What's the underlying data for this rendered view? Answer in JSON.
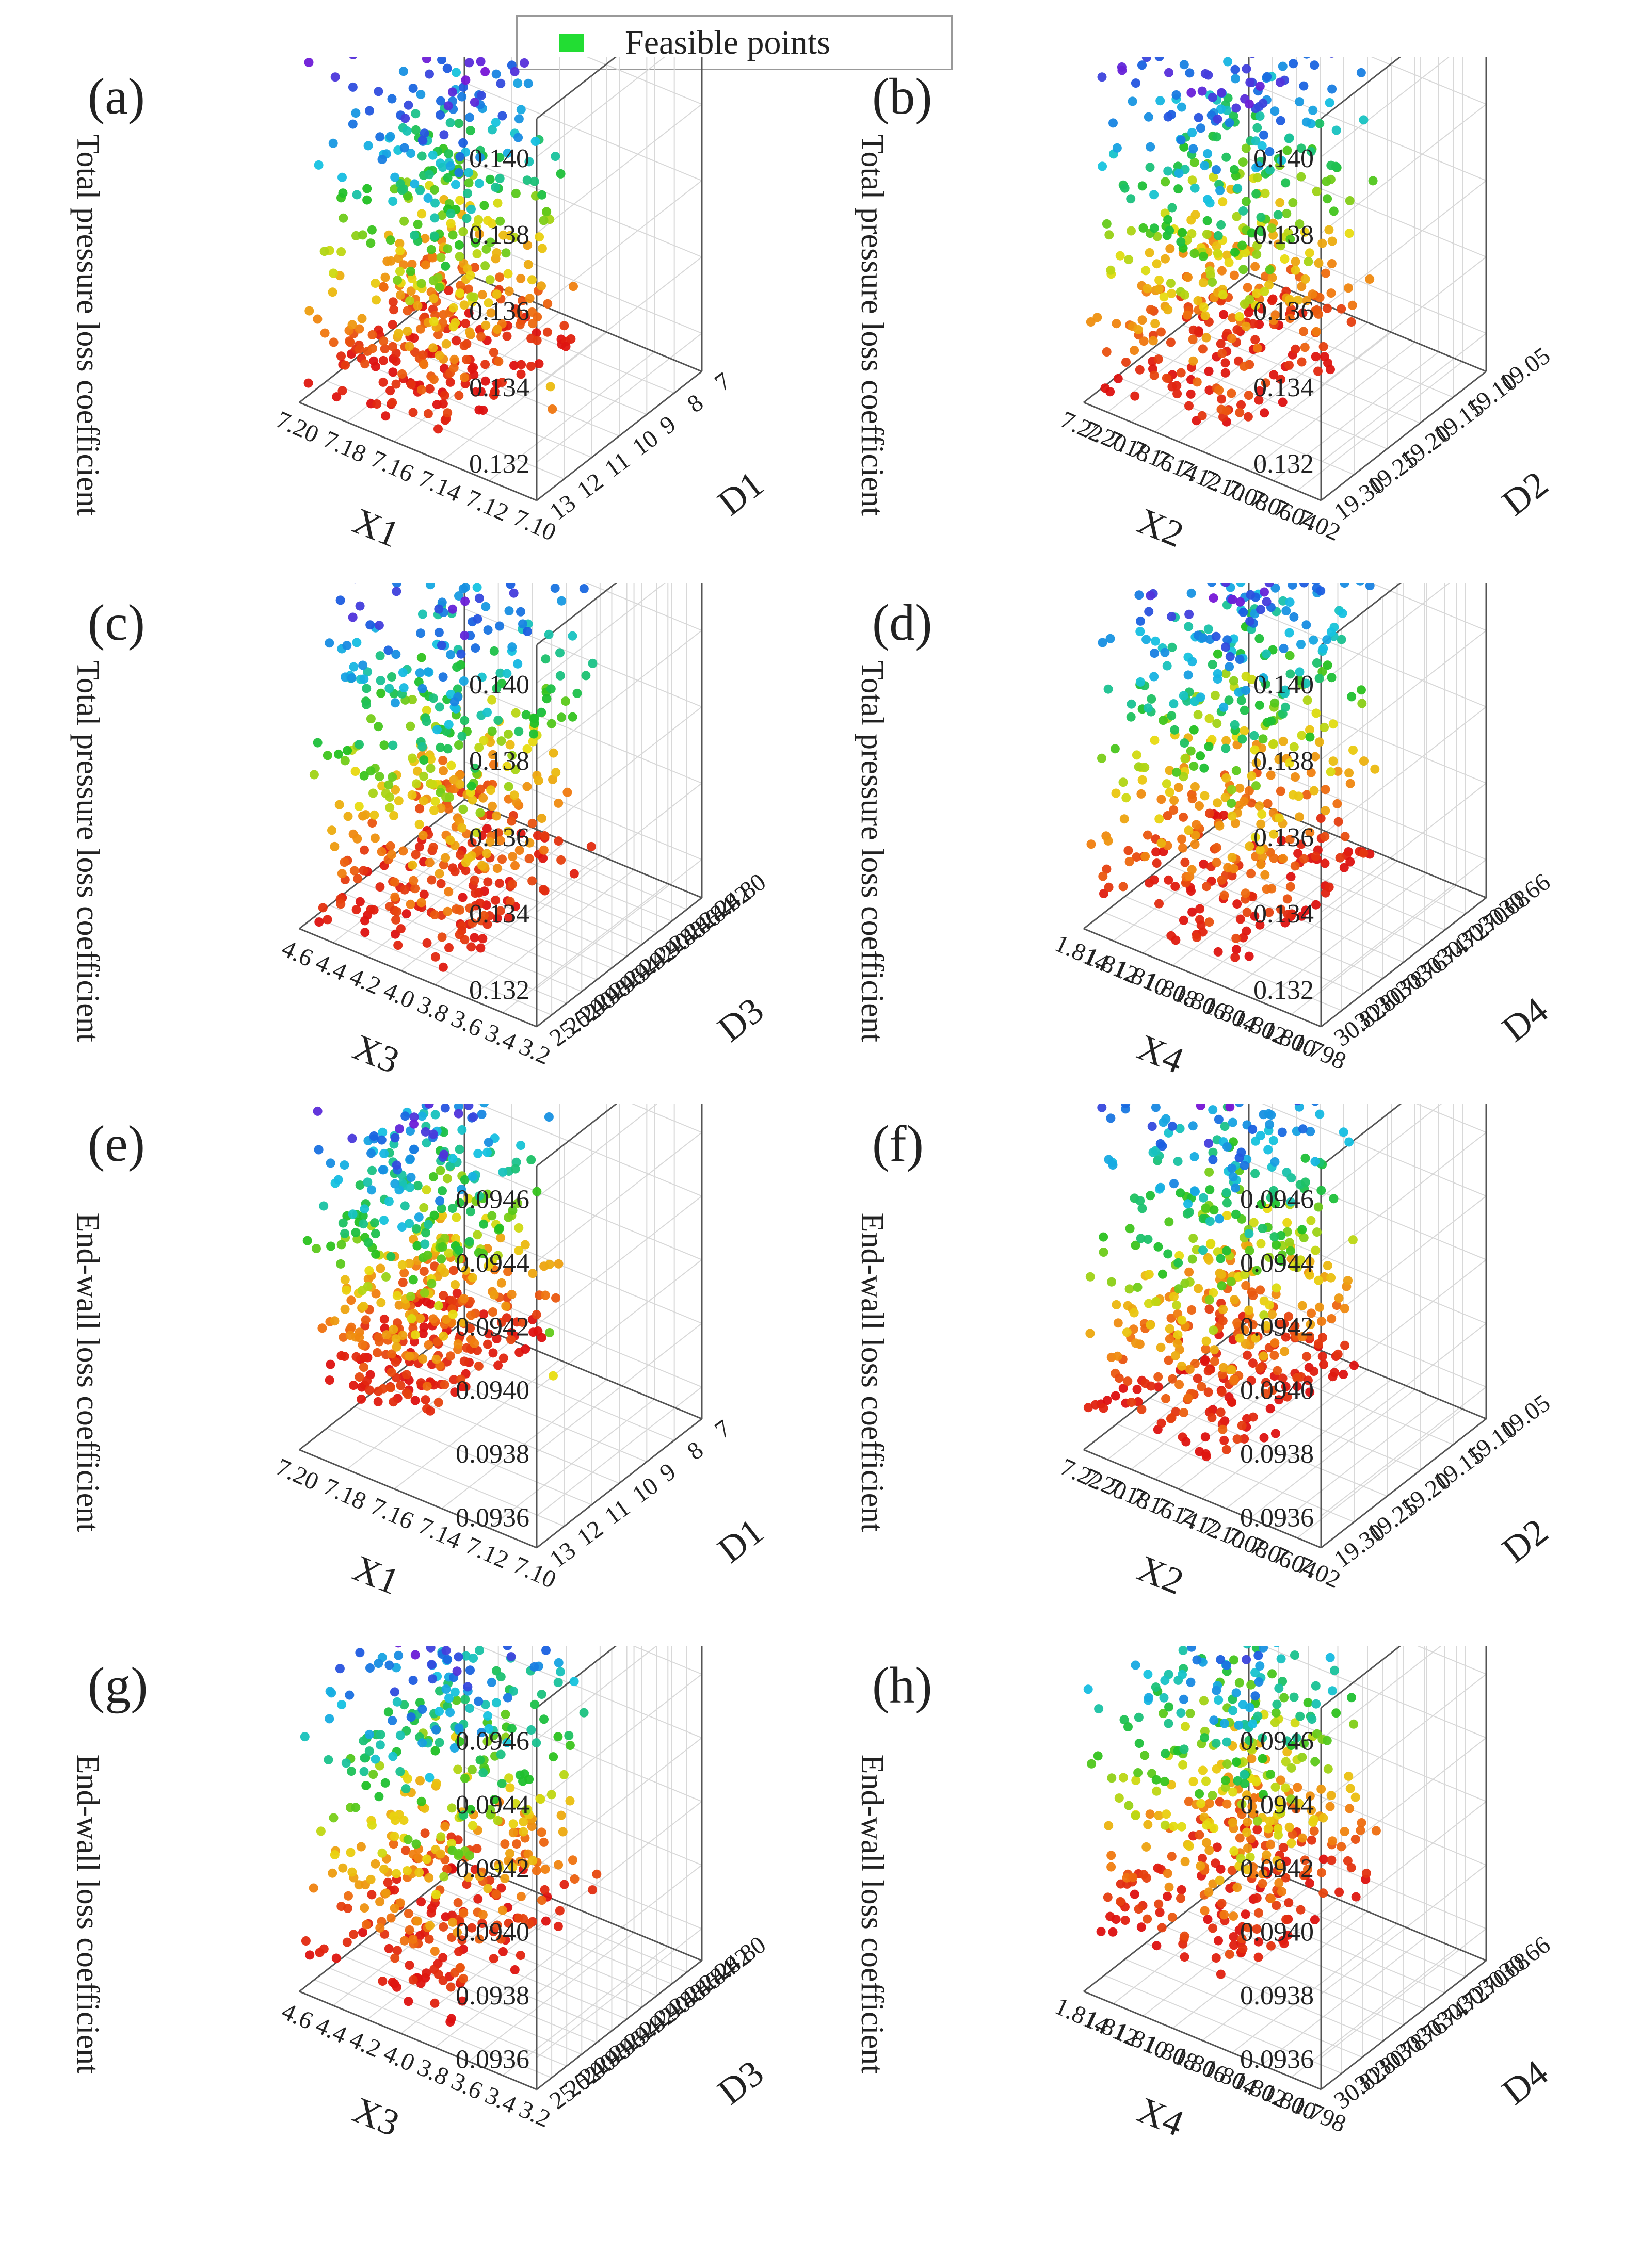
{
  "legend": {
    "label": "Feasible points",
    "color": "#22dd33"
  },
  "colors": {
    "ramp": [
      "#7a12d6",
      "#1a5fe0",
      "#16c3e2",
      "#20c020",
      "#e8dd10",
      "#f07a10",
      "#dd1010"
    ],
    "grid": "#d8d8d8",
    "axis": "#555555"
  },
  "chart_data": [
    {
      "panel": "(a)",
      "type": "scatter3d",
      "title": "",
      "xlabel": "X1",
      "ylabel": "D1",
      "zlabel": "Total pressure loss coefficient",
      "xticks": [
        "7.10",
        "7.12",
        "7.14",
        "7.16",
        "7.18",
        "7.20"
      ],
      "yticks": [
        "7",
        "8",
        "9",
        "10",
        "11",
        "12",
        "13"
      ],
      "zticks": [
        "0.132",
        "0.134",
        "0.136",
        "0.138",
        "0.140"
      ],
      "xlim": [
        7.1,
        7.2
      ],
      "ylim": [
        7,
        13
      ],
      "zlim": [
        0.1315,
        0.1415
      ],
      "points": {
        "n": 520,
        "x": [
          7.12,
          7.2
        ],
        "y": [
          8,
          12.8
        ],
        "z": [
          0.1318,
          0.1405
        ],
        "outliers": [
          [
            7.1,
            12.5,
            0.1342
          ],
          [
            7.105,
            12.0,
            0.1332
          ]
        ]
      }
    },
    {
      "panel": "(b)",
      "type": "scatter3d",
      "title": "",
      "xlabel": "X2",
      "ylabel": "D2",
      "zlabel": "Total pressure loss coefficient",
      "xticks": [
        "7.02",
        "7.04",
        "7.06",
        "7.08",
        "7.10",
        "7.12",
        "7.14",
        "7.16",
        "7.18",
        "7.20",
        "7.22"
      ],
      "yticks": [
        "19.05",
        "19.10",
        "19.15",
        "19.20",
        "19.25",
        "19.30"
      ],
      "zticks": [
        "0.132",
        "0.134",
        "0.136",
        "0.138",
        "0.140"
      ],
      "xlim": [
        7.02,
        7.22
      ],
      "ylim": [
        19.05,
        19.3
      ],
      "zlim": [
        0.1315,
        0.1415
      ],
      "points": {
        "n": 520,
        "x": [
          7.05,
          7.22
        ],
        "y": [
          19.08,
          19.3
        ],
        "z": [
          0.1318,
          0.1408
        ],
        "outliers": []
      }
    },
    {
      "panel": "(c)",
      "type": "scatter3d",
      "title": "",
      "xlabel": "X3",
      "ylabel": "D3",
      "zlabel": "Total pressure loss coefficient",
      "xticks": [
        "3.2",
        "3.4",
        "3.6",
        "3.8",
        "4.0",
        "4.2",
        "4.4",
        "4.6"
      ],
      "yticks": [
        "24.80",
        "24.82",
        "24.84",
        "24.86",
        "24.88",
        "24.90",
        "24.92",
        "24.94",
        "24.96",
        "24.98",
        "25.00",
        "25.02"
      ],
      "zticks": [
        "0.132",
        "0.134",
        "0.136",
        "0.138",
        "0.140"
      ],
      "xlim": [
        3.2,
        4.6
      ],
      "ylim": [
        24.8,
        25.02
      ],
      "zlim": [
        0.1315,
        0.1415
      ],
      "points": {
        "n": 520,
        "x": [
          3.4,
          4.6
        ],
        "y": [
          24.82,
          25.02
        ],
        "z": [
          0.1318,
          0.1408
        ],
        "outliers": []
      }
    },
    {
      "panel": "(d)",
      "type": "scatter3d",
      "title": "",
      "xlabel": "X4",
      "ylabel": "D4",
      "zlabel": "Total pressure loss coefficient",
      "xticks": [
        "1.798",
        "1.800",
        "1.802",
        "1.804",
        "1.806",
        "1.808",
        "1.810",
        "1.812",
        "1.814"
      ],
      "yticks": [
        "30.66",
        "30.68",
        "30.70",
        "30.72",
        "30.74",
        "30.76",
        "30.78",
        "30.80",
        "30.82"
      ],
      "zticks": [
        "0.132",
        "0.134",
        "0.136",
        "0.138",
        "0.140"
      ],
      "xlim": [
        1.798,
        1.814
      ],
      "ylim": [
        30.66,
        30.82
      ],
      "zlim": [
        0.1315,
        0.1415
      ],
      "points": {
        "n": 520,
        "x": [
          1.8,
          1.814
        ],
        "y": [
          30.68,
          30.82
        ],
        "z": [
          0.132,
          0.1415
        ],
        "outliers": []
      }
    },
    {
      "panel": "(e)",
      "type": "scatter3d",
      "title": "",
      "xlabel": "X1",
      "ylabel": "D1",
      "zlabel": "End-wall loss coefficient",
      "xticks": [
        "7.10",
        "7.12",
        "7.14",
        "7.16",
        "7.18",
        "7.20"
      ],
      "yticks": [
        "7",
        "8",
        "9",
        "10",
        "11",
        "12",
        "13"
      ],
      "zticks": [
        "0.0936",
        "0.0938",
        "0.0940",
        "0.0942",
        "0.0944",
        "0.0946"
      ],
      "xlim": [
        7.1,
        7.2
      ],
      "ylim": [
        7,
        13
      ],
      "zlim": [
        0.0935,
        0.0947
      ],
      "points": {
        "n": 520,
        "x": [
          7.13,
          7.2
        ],
        "y": [
          8,
          12.8
        ],
        "z": [
          0.0937,
          0.0946
        ],
        "outliers": [
          [
            7.1,
            12.4,
            0.094
          ],
          [
            7.105,
            12.1,
            0.0941
          ]
        ]
      }
    },
    {
      "panel": "(f)",
      "type": "scatter3d",
      "title": "",
      "xlabel": "X2",
      "ylabel": "D2",
      "zlabel": "End-wall loss coefficient",
      "xticks": [
        "7.02",
        "7.04",
        "7.06",
        "7.08",
        "7.10",
        "7.12",
        "7.14",
        "7.16",
        "7.18",
        "7.20",
        "7.22"
      ],
      "yticks": [
        "19.05",
        "19.10",
        "19.15",
        "19.20",
        "19.25",
        "19.30"
      ],
      "zticks": [
        "0.0936",
        "0.0938",
        "0.0940",
        "0.0942",
        "0.0944",
        "0.0946"
      ],
      "xlim": [
        7.02,
        7.22
      ],
      "ylim": [
        19.05,
        19.3
      ],
      "zlim": [
        0.0935,
        0.0947
      ],
      "points": {
        "n": 520,
        "x": [
          7.06,
          7.22
        ],
        "y": [
          19.08,
          19.3
        ],
        "z": [
          0.0936,
          0.0947
        ],
        "outliers": []
      }
    },
    {
      "panel": "(g)",
      "type": "scatter3d",
      "title": "",
      "xlabel": "X3",
      "ylabel": "D3",
      "zlabel": "End-wall loss coefficient",
      "xticks": [
        "3.2",
        "3.4",
        "3.6",
        "3.8",
        "4.0",
        "4.2",
        "4.4",
        "4.6"
      ],
      "yticks": [
        "24.80",
        "24.82",
        "24.84",
        "24.86",
        "24.88",
        "24.90",
        "24.92",
        "24.94",
        "24.96",
        "24.98",
        "25.00",
        "25.02"
      ],
      "zticks": [
        "0.0936",
        "0.0938",
        "0.0940",
        "0.0942",
        "0.0944",
        "0.0946"
      ],
      "xlim": [
        3.2,
        4.6
      ],
      "ylim": [
        24.8,
        25.02
      ],
      "zlim": [
        0.0935,
        0.0947
      ],
      "points": {
        "n": 520,
        "x": [
          3.4,
          4.6
        ],
        "y": [
          24.82,
          25.02
        ],
        "z": [
          0.0936,
          0.0947
        ],
        "outliers": []
      }
    },
    {
      "panel": "(h)",
      "type": "scatter3d",
      "title": "",
      "xlabel": "X4",
      "ylabel": "D4",
      "zlabel": "End-wall loss coefficient",
      "xticks": [
        "1.798",
        "1.800",
        "1.802",
        "1.804",
        "1.806",
        "1.808",
        "1.810",
        "1.812",
        "1.814"
      ],
      "yticks": [
        "30.66",
        "30.68",
        "30.70",
        "30.72",
        "30.74",
        "30.76",
        "30.78",
        "30.80",
        "30.82"
      ],
      "zticks": [
        "0.0936",
        "0.0938",
        "0.0940",
        "0.0942",
        "0.0944",
        "0.0946"
      ],
      "xlim": [
        1.798,
        1.814
      ],
      "ylim": [
        30.66,
        30.82
      ],
      "zlim": [
        0.0935,
        0.0947
      ],
      "points": {
        "n": 520,
        "x": [
          1.8,
          1.814
        ],
        "y": [
          30.68,
          30.82
        ],
        "z": [
          0.0937,
          0.0948
        ],
        "outliers": []
      }
    }
  ]
}
